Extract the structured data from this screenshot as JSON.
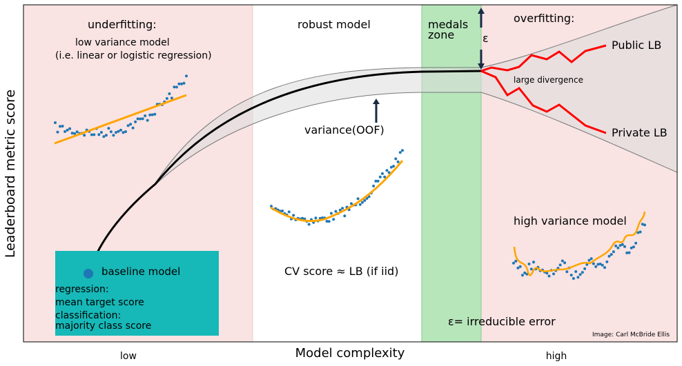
{
  "axes": {
    "ylabel": "Leaderboard metric score",
    "xlabel": "Model complexity",
    "x_low": "low",
    "x_high": "high"
  },
  "regions": {
    "underfitting": {
      "title": "underfitting:",
      "line1": "low variance model",
      "line2": "(i.e. linear or logistic regression)",
      "color": "#f9e3e3"
    },
    "robust": {
      "title": "robust model",
      "variance_label": "variance(OOF)",
      "cv_label": "CV score ≈ LB (if iid)"
    },
    "medals": {
      "line1": "medals",
      "line2": "zone",
      "color": "#b7e6bb"
    },
    "overfitting": {
      "title": "overfitting:",
      "high_variance": "high variance model",
      "color": "#f9e3e3"
    }
  },
  "baseline": {
    "label": "baseline model",
    "regression_title": "regression:",
    "regression_value": "mean target score",
    "classification_title": "classification:",
    "classification_value": "majority class score",
    "box_color": "#17b8b8"
  },
  "curves": {
    "public_lb": "Public LB",
    "private_lb": "Private LB",
    "divergence": "large divergence",
    "epsilon": "ε",
    "epsilon_note": "ε= irreducible error",
    "lb_color": "#ff0000",
    "fit_color": "#ffa500",
    "point_color": "#1f77b4"
  },
  "credit": "Image: Carl McBride Ellis"
}
